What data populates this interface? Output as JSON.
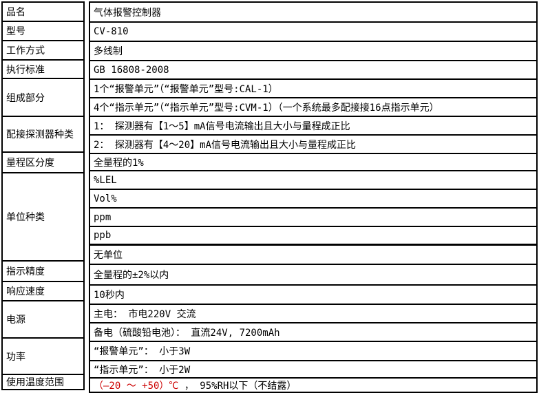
{
  "colors": {
    "background": "#ffffff",
    "border": "#000000",
    "text": "#000000",
    "highlight_red": "#cc0000"
  },
  "spec_table": {
    "left_column": [
      {
        "label": "品名"
      },
      {
        "label": "型号"
      },
      {
        "label": "工作方式"
      },
      {
        "label": "执行标准"
      },
      {
        "label": "组成部分"
      },
      {
        "label": "配接探测器种类"
      },
      {
        "label": "量程区分度"
      },
      {
        "label": "单位种类"
      },
      {
        "label": "指示精度"
      },
      {
        "label": "响应速度"
      },
      {
        "label": "电源"
      },
      {
        "label": "功率"
      },
      {
        "label": "使用温度范围"
      }
    ],
    "right_column": [
      {
        "text": "气体报警控制器"
      },
      {
        "text": "CV-810"
      },
      {
        "text": "多线制"
      },
      {
        "text": "GB 16808-2008"
      },
      {
        "text": "1个“报警单元”（“报警单元”型号:CAL-1）"
      },
      {
        "text": "4个“指示单元”（“指示单元”型号:CVM-1）（一个系统最多配接接16点指示单元）"
      },
      {
        "text": "1： 探测器有【1～5】mA信号电流输出且大小与量程成正比"
      },
      {
        "text": "2： 探测器有【4～20】mA信号电流输出且大小与量程成正比"
      },
      {
        "text": "全量程的1%"
      },
      {
        "text": "%LEL"
      },
      {
        "text": "Vol%"
      },
      {
        "text": "ppm"
      },
      {
        "text": "ppb",
        "thick_bottom": true
      },
      {
        "text": "无单位"
      },
      {
        "text": "全量程的±2%以内"
      },
      {
        "text": "10秒内"
      },
      {
        "text": "主电： 市电220V 交流"
      },
      {
        "text": "备电（硫酸铅电池）： 直流24V, 7200mAh"
      },
      {
        "text": "“报警单元”： 小于3W"
      },
      {
        "text": "“指示单元”： 小于2W"
      },
      {
        "segments": [
          {
            "text": "（—20 ～ +50）℃ ",
            "red": true
          },
          {
            "text": "， 95%RH以下（不结露）",
            "red": false
          }
        ]
      }
    ]
  }
}
